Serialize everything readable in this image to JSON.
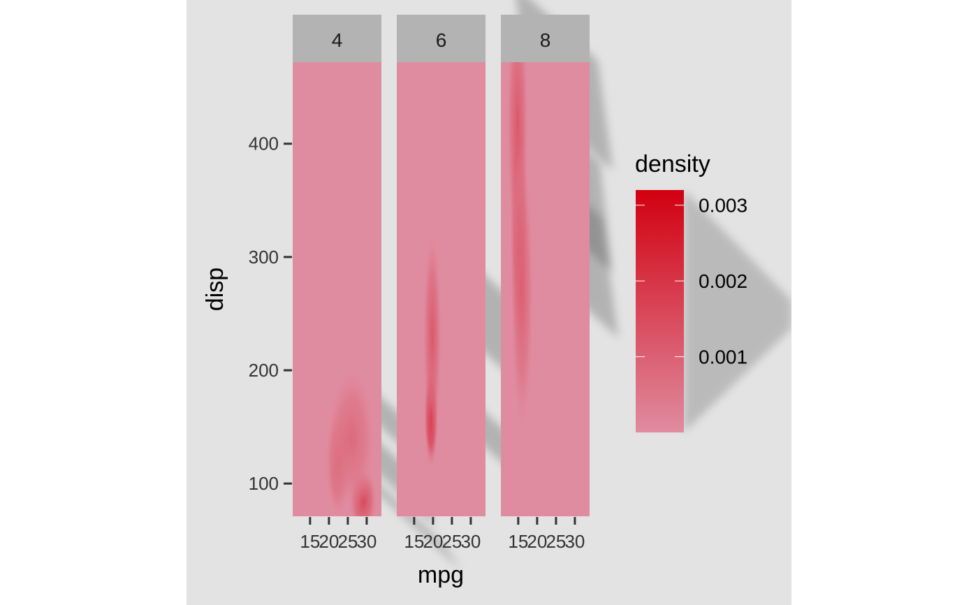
{
  "chart_data": {
    "type": "heatmap",
    "title": "",
    "xlabel": "mpg",
    "ylabel": "disp",
    "facet_labels": [
      "4",
      "6",
      "8"
    ],
    "x_ticks": [
      15,
      20,
      25,
      30
    ],
    "x_tick_labels": [
      "15",
      "20",
      "25",
      "30"
    ],
    "xlim": [
      10.4,
      33.9
    ],
    "y_ticks": [
      100,
      200,
      300,
      400
    ],
    "y_tick_labels": [
      "100",
      "200",
      "300",
      "400"
    ],
    "ylim": [
      71.1,
      472
    ],
    "legend": {
      "title": "density",
      "breaks": [
        0.001,
        0.002,
        0.003
      ],
      "labels": [
        "0.001",
        "0.002",
        "0.003"
      ],
      "range": [
        0,
        0.0032
      ],
      "position": "right"
    },
    "colors": {
      "low": "#e08ca0",
      "high": "#d10010",
      "panel_background": "#e08ca0",
      "plot_background": "#e3e3e3",
      "strip_background": "#b3b3b3",
      "shadow": "#5a5a5a"
    },
    "series": [
      {
        "name": "4",
        "density_peaks": [
          {
            "x": 29.0,
            "y": 85,
            "sx": 1.8,
            "sy": 14,
            "peak": 0.0016
          },
          {
            "x": 22.5,
            "y": 120,
            "sx": 1.6,
            "sy": 24,
            "peak": 0.0012
          },
          {
            "x": 26.0,
            "y": 140,
            "sx": 3.0,
            "sy": 30,
            "peak": 0.0008
          }
        ]
      },
      {
        "name": "6",
        "density_peaks": [
          {
            "x": 19.5,
            "y": 160,
            "sx": 0.9,
            "sy": 22,
            "peak": 0.0028
          },
          {
            "x": 19.8,
            "y": 230,
            "sx": 1.2,
            "sy": 45,
            "peak": 0.0012
          }
        ]
      },
      {
        "name": "8",
        "density_peaks": [
          {
            "x": 15.2,
            "y": 330,
            "sx": 1.1,
            "sy": 55,
            "peak": 0.0026
          },
          {
            "x": 14.8,
            "y": 420,
            "sx": 1.4,
            "sy": 55,
            "peak": 0.0012
          },
          {
            "x": 16.0,
            "y": 270,
            "sx": 1.5,
            "sy": 60,
            "peak": 0.001
          }
        ]
      }
    ]
  }
}
